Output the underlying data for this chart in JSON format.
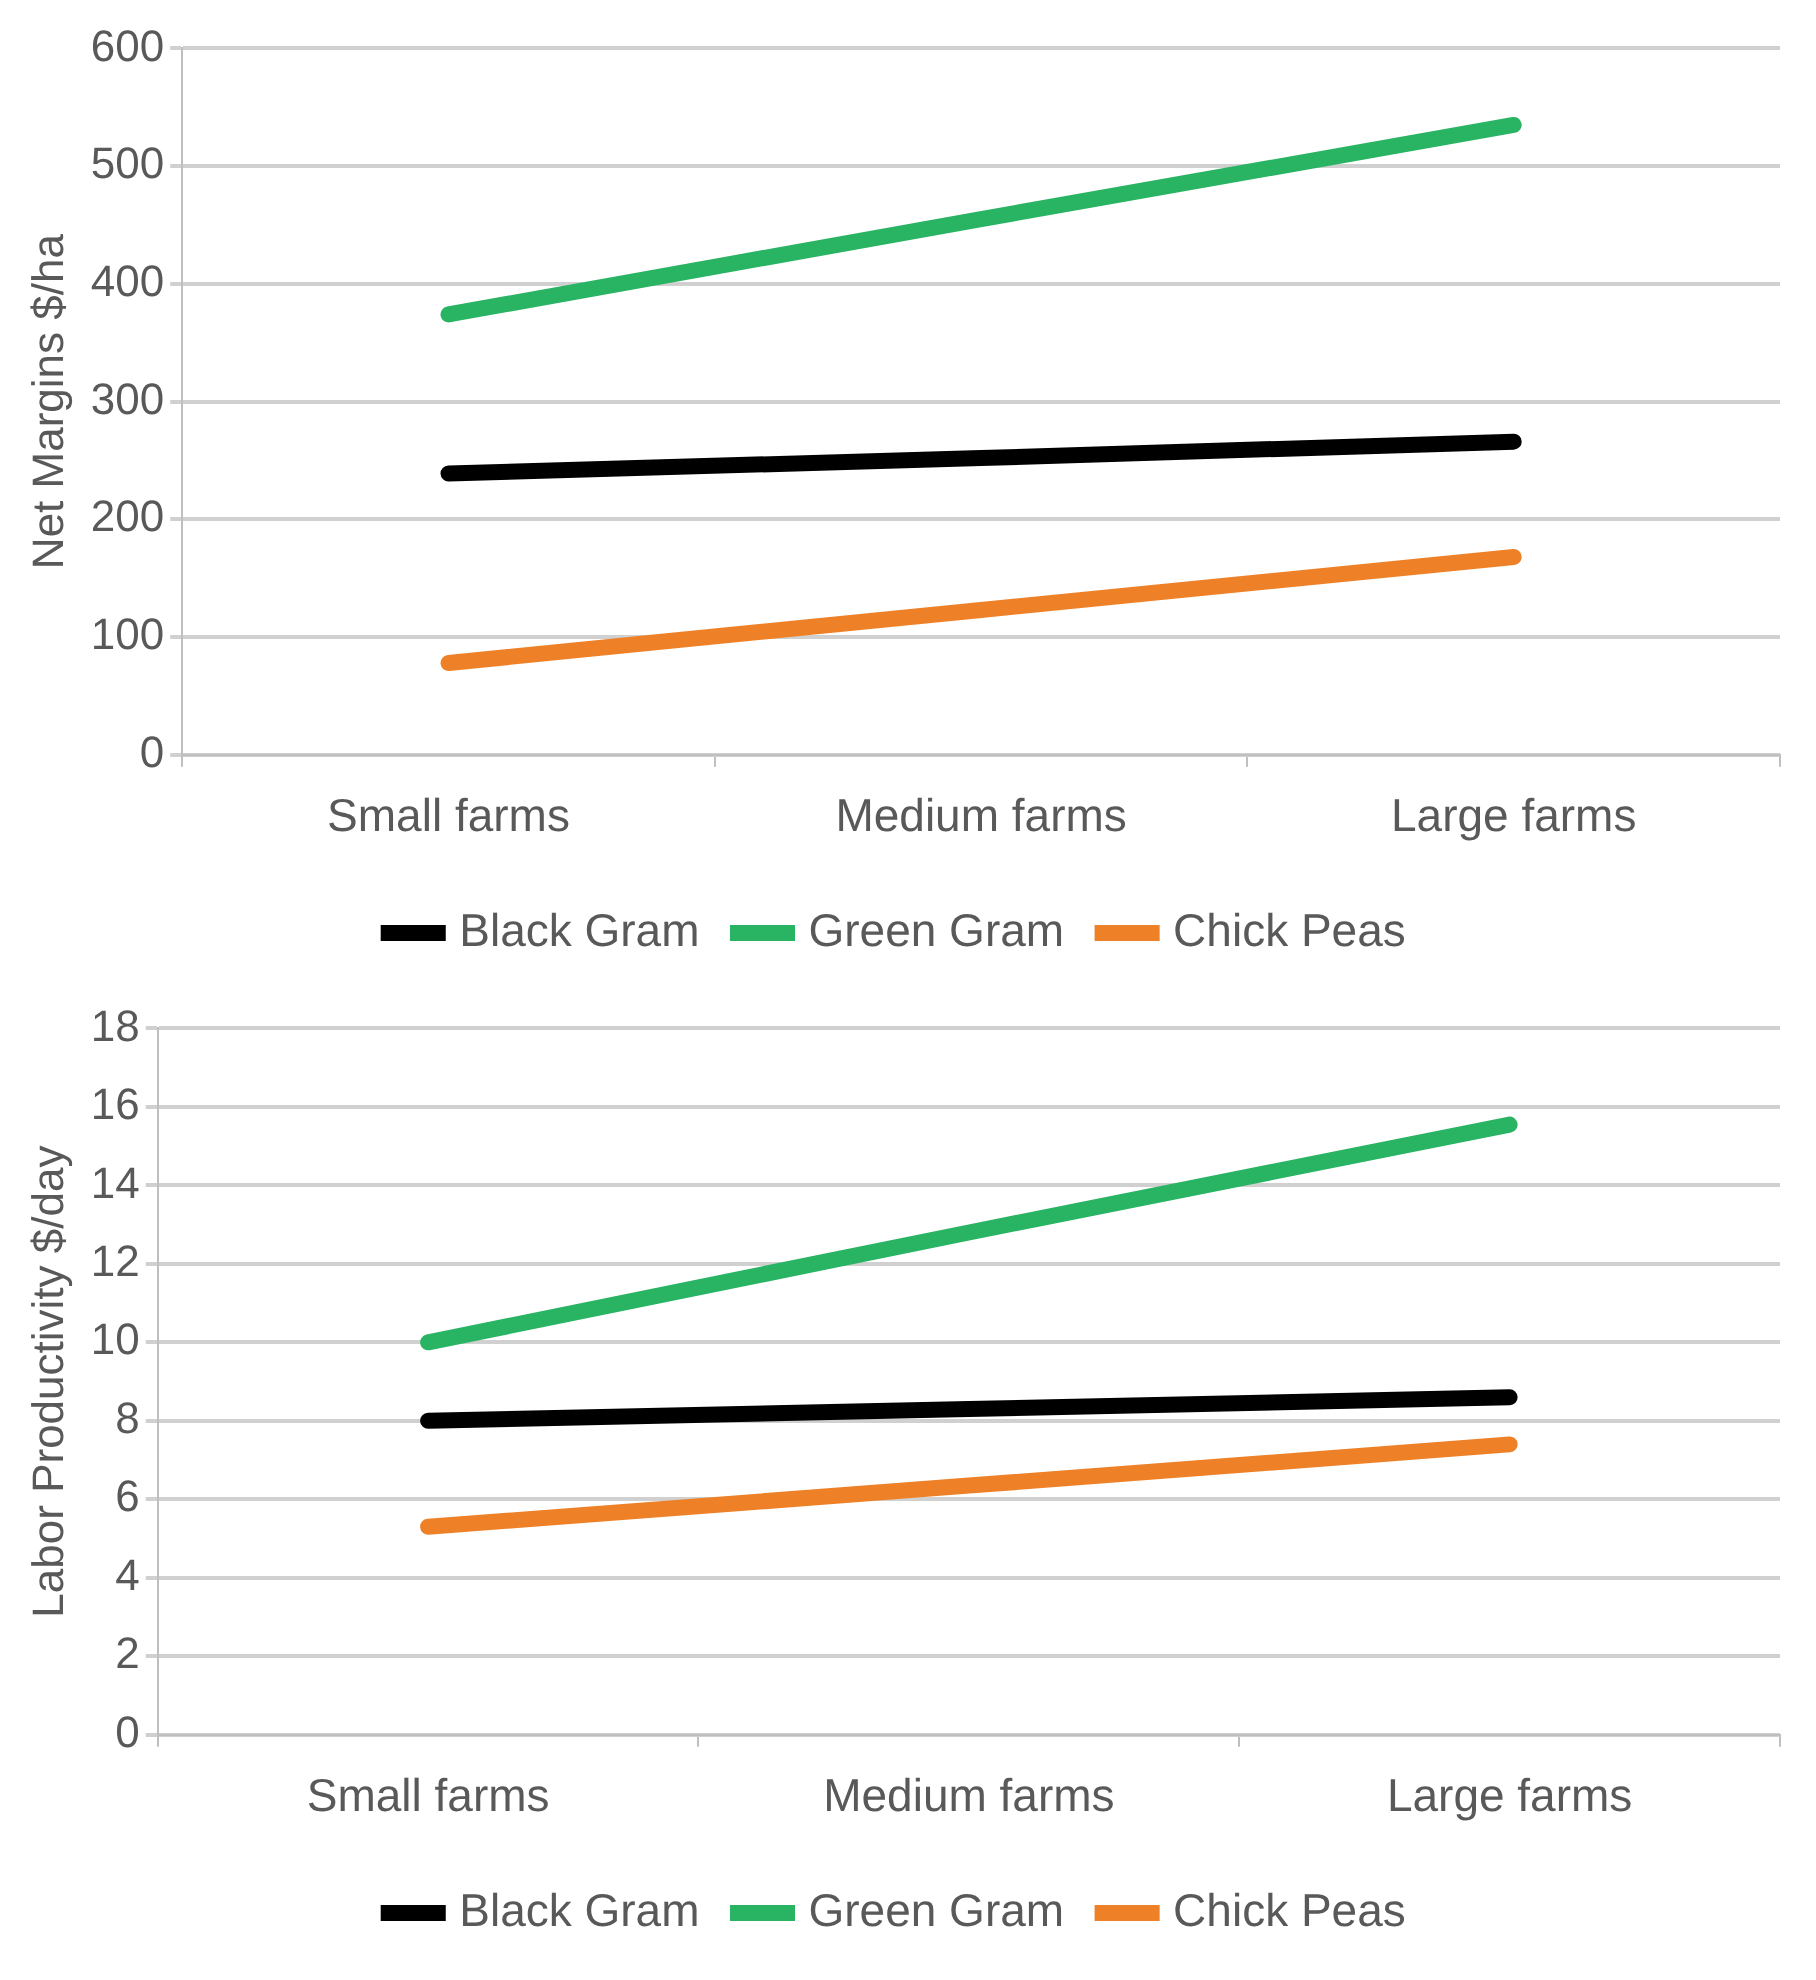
{
  "chart_data": [
    {
      "type": "line",
      "ylabel": "Net Margins $/ha",
      "categories": [
        "Small farms",
        "Medium farms",
        "Large farms"
      ],
      "ylim": [
        0,
        600
      ],
      "yticks": [
        0,
        100,
        200,
        300,
        400,
        500,
        600
      ],
      "grid": "y",
      "legend": "bottom",
      "marker": "none",
      "line_style": "solid",
      "series": [
        {
          "name": "Black Gram",
          "color": "#000000",
          "values": [
            239,
            252,
            266
          ]
        },
        {
          "name": "Green Gram",
          "color": "#28b463",
          "values": [
            374,
            455,
            535
          ]
        },
        {
          "name": "Chick Peas",
          "color": "#ee8128",
          "values": [
            78,
            123,
            168
          ]
        }
      ]
    },
    {
      "type": "line",
      "ylabel": "Labor Productivity $/day",
      "categories": [
        "Small farms",
        "Medium farms",
        "Large farms"
      ],
      "ylim": [
        0,
        18
      ],
      "yticks": [
        0,
        2,
        4,
        6,
        8,
        10,
        12,
        14,
        16,
        18
      ],
      "grid": "y",
      "legend": "bottom",
      "marker": "none",
      "line_style": "solid",
      "series": [
        {
          "name": "Black Gram",
          "color": "#000000",
          "values": [
            8.0,
            8.3,
            8.6
          ]
        },
        {
          "name": "Green Gram",
          "color": "#28b463",
          "values": [
            10.0,
            12.8,
            15.55
          ]
        },
        {
          "name": "Chick Peas",
          "color": "#ee8128",
          "values": [
            5.3,
            6.35,
            7.4
          ]
        }
      ]
    }
  ]
}
